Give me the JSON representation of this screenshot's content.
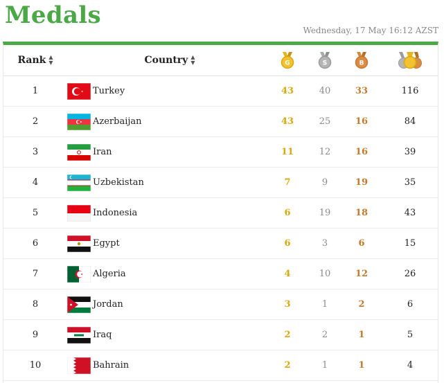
{
  "page": {
    "title": "Medals",
    "updated": "Wednesday, 17 May 16:12 AZST"
  },
  "table": {
    "headers": {
      "rank": "Rank",
      "country": "Country",
      "gold_badge": "G",
      "silver_badge": "S",
      "bronze_badge": "B"
    },
    "colors": {
      "accent": "#4aa847",
      "gold": "#d9a90c",
      "silver": "#8a8a8a",
      "bronze": "#c47a2c"
    },
    "rows": [
      {
        "rank": "1",
        "country": "Turkey",
        "gold": "43",
        "silver": "40",
        "bronze": "33",
        "total": "116",
        "flag": "turkey-flag-icon"
      },
      {
        "rank": "2",
        "country": "Azerbaijan",
        "gold": "43",
        "silver": "25",
        "bronze": "16",
        "total": "84",
        "flag": "azerbaijan-flag-icon"
      },
      {
        "rank": "3",
        "country": "Iran",
        "gold": "11",
        "silver": "12",
        "bronze": "16",
        "total": "39",
        "flag": "iran-flag-icon"
      },
      {
        "rank": "4",
        "country": "Uzbekistan",
        "gold": "7",
        "silver": "9",
        "bronze": "19",
        "total": "35",
        "flag": "uzbekistan-flag-icon"
      },
      {
        "rank": "5",
        "country": "Indonesia",
        "gold": "6",
        "silver": "19",
        "bronze": "18",
        "total": "43",
        "flag": "indonesia-flag-icon"
      },
      {
        "rank": "6",
        "country": "Egypt",
        "gold": "6",
        "silver": "3",
        "bronze": "6",
        "total": "15",
        "flag": "egypt-flag-icon"
      },
      {
        "rank": "7",
        "country": "Algeria",
        "gold": "4",
        "silver": "10",
        "bronze": "12",
        "total": "26",
        "flag": "algeria-flag-icon"
      },
      {
        "rank": "8",
        "country": "Jordan",
        "gold": "3",
        "silver": "1",
        "bronze": "2",
        "total": "6",
        "flag": "jordan-flag-icon"
      },
      {
        "rank": "9",
        "country": "Iraq",
        "gold": "2",
        "silver": "2",
        "bronze": "1",
        "total": "5",
        "flag": "iraq-flag-icon"
      },
      {
        "rank": "10",
        "country": "Bahrain",
        "gold": "2",
        "silver": "1",
        "bronze": "1",
        "total": "4",
        "flag": "bahrain-flag-icon"
      }
    ]
  }
}
